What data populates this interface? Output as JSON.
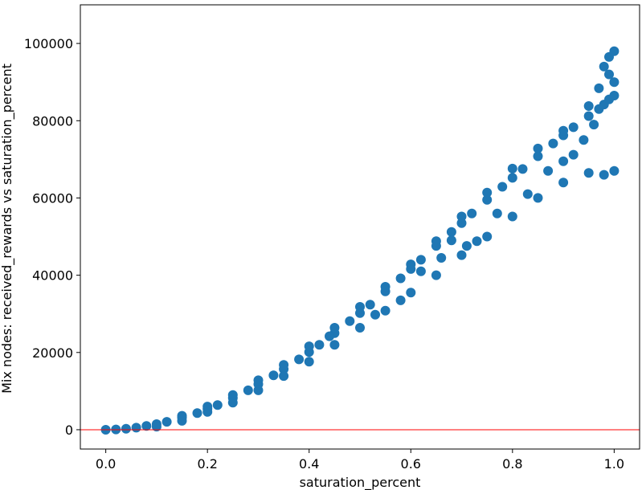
{
  "chart_data": {
    "type": "scatter",
    "title": "",
    "xlabel": "saturation_percent",
    "ylabel": "Mix nodes:  received_rewards  vs  saturation_percent",
    "xlim": [
      -0.05,
      1.05
    ],
    "ylim": [
      -5000,
      110000
    ],
    "x_ticks": [
      0.0,
      0.2,
      0.4,
      0.6,
      0.8,
      1.0
    ],
    "x_tick_labels": [
      "0.0",
      "0.2",
      "0.4",
      "0.6",
      "0.8",
      "1.0"
    ],
    "y_ticks": [
      0,
      20000,
      40000,
      60000,
      80000,
      100000
    ],
    "y_tick_labels": [
      "0",
      "20000",
      "40000",
      "60000",
      "80000",
      "100000"
    ],
    "grid": false,
    "reference_line": {
      "y": 0,
      "color": "#ff0000"
    },
    "colors": {
      "points": "#1f77b4"
    },
    "series": [
      {
        "points": [
          [
            0.0,
            0
          ],
          [
            0.02,
            80
          ],
          [
            0.04,
            260
          ],
          [
            0.06,
            540
          ],
          [
            0.08,
            960
          ],
          [
            0.1,
            1450
          ],
          [
            0.12,
            2050
          ],
          [
            0.15,
            3100
          ],
          [
            0.18,
            4300
          ],
          [
            0.2,
            5400
          ],
          [
            0.22,
            6400
          ],
          [
            0.25,
            8200
          ],
          [
            0.28,
            10200
          ],
          [
            0.3,
            11800
          ],
          [
            0.33,
            14100
          ],
          [
            0.35,
            15700
          ],
          [
            0.38,
            18200
          ],
          [
            0.4,
            20100
          ],
          [
            0.42,
            22000
          ],
          [
            0.45,
            25000
          ],
          [
            0.48,
            28100
          ],
          [
            0.5,
            30200
          ],
          [
            0.52,
            32400
          ],
          [
            0.55,
            35800
          ],
          [
            0.58,
            39200
          ],
          [
            0.6,
            41600
          ],
          [
            0.62,
            44000
          ],
          [
            0.65,
            47600
          ],
          [
            0.68,
            51200
          ],
          [
            0.7,
            53500
          ],
          [
            0.72,
            56000
          ],
          [
            0.75,
            59500
          ],
          [
            0.78,
            62900
          ],
          [
            0.8,
            65200
          ],
          [
            0.82,
            67500
          ],
          [
            0.85,
            70800
          ],
          [
            0.88,
            74100
          ],
          [
            0.9,
            76200
          ],
          [
            0.92,
            78300
          ],
          [
            0.95,
            81200
          ],
          [
            0.97,
            83000
          ],
          [
            0.98,
            84200
          ],
          [
            0.99,
            85500
          ],
          [
            1.0,
            86500
          ],
          [
            0.1,
            800
          ],
          [
            0.15,
            2300
          ],
          [
            0.2,
            4600
          ],
          [
            0.25,
            7000
          ],
          [
            0.3,
            10200
          ],
          [
            0.35,
            13900
          ],
          [
            0.4,
            17600
          ],
          [
            0.45,
            22000
          ],
          [
            0.5,
            26400
          ],
          [
            0.55,
            30800
          ],
          [
            0.6,
            35500
          ],
          [
            0.65,
            40000
          ],
          [
            0.7,
            45200
          ],
          [
            0.75,
            50000
          ],
          [
            0.8,
            55200
          ],
          [
            0.85,
            60000
          ],
          [
            0.9,
            64000
          ],
          [
            0.95,
            66500
          ],
          [
            0.98,
            66000
          ],
          [
            1.0,
            67000
          ],
          [
            0.15,
            3600
          ],
          [
            0.2,
            6000
          ],
          [
            0.25,
            9000
          ],
          [
            0.3,
            12800
          ],
          [
            0.35,
            16800
          ],
          [
            0.4,
            21600
          ],
          [
            0.45,
            26400
          ],
          [
            0.5,
            31800
          ],
          [
            0.55,
            37000
          ],
          [
            0.6,
            42800
          ],
          [
            0.65,
            48800
          ],
          [
            0.7,
            55200
          ],
          [
            0.75,
            61400
          ],
          [
            0.8,
            67600
          ],
          [
            0.85,
            72800
          ],
          [
            0.9,
            77400
          ],
          [
            0.95,
            83800
          ],
          [
            0.97,
            88400
          ],
          [
            0.98,
            94000
          ],
          [
            0.99,
            96500
          ],
          [
            1.0,
            98000
          ],
          [
            0.99,
            92000
          ],
          [
            1.0,
            90000
          ],
          [
            0.71,
            47600
          ],
          [
            0.73,
            48800
          ],
          [
            0.62,
            41000
          ],
          [
            0.68,
            49000
          ],
          [
            0.87,
            67000
          ],
          [
            0.92,
            71200
          ],
          [
            0.94,
            75000
          ],
          [
            0.9,
            69500
          ],
          [
            0.58,
            33500
          ],
          [
            0.53,
            29800
          ],
          [
            0.44,
            24200
          ],
          [
            0.66,
            44500
          ],
          [
            0.77,
            56000
          ],
          [
            0.83,
            61000
          ],
          [
            0.96,
            79000
          ]
        ]
      }
    ]
  }
}
